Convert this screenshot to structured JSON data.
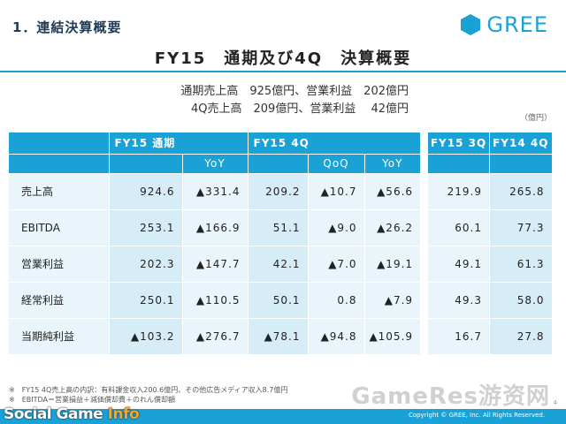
{
  "header": {
    "section_title": "1．連結決算概要",
    "logo_text": "GREE",
    "main_title": "FY15　通期及び4Q　決算概要"
  },
  "summary": {
    "line1": "通期売上高　925億円、営業利益　202億円",
    "line2": "4Q売上高　209億円、営業利益　 42億円"
  },
  "unit_label": "（億円）",
  "table": {
    "group_headers": {
      "fy15_full": "FY15 通期",
      "fy15_4q": "FY15 4Q",
      "fy15_3q": "FY15 3Q",
      "fy14_4q": "FY14 4Q"
    },
    "sub_headers": {
      "yoy": "YoY",
      "qoq": "QoQ"
    },
    "rows": [
      {
        "label": "売上高",
        "full": "924.6",
        "full_yoy": "▲331.4",
        "q4": "209.2",
        "q4_qoq": "▲10.7",
        "q4_yoy": "▲56.6",
        "q3": "219.9",
        "prev_q4": "265.8"
      },
      {
        "label": "EBITDA",
        "full": "253.1",
        "full_yoy": "▲166.9",
        "q4": "51.1",
        "q4_qoq": "▲9.0",
        "q4_yoy": "▲26.2",
        "q3": "60.1",
        "prev_q4": "77.3"
      },
      {
        "label": "営業利益",
        "full": "202.3",
        "full_yoy": "▲147.7",
        "q4": "42.1",
        "q4_qoq": "▲7.0",
        "q4_yoy": "▲19.1",
        "q3": "49.1",
        "prev_q4": "61.3"
      },
      {
        "label": "経常利益",
        "full": "250.1",
        "full_yoy": "▲110.5",
        "q4": "50.1",
        "q4_qoq": "0.8",
        "q4_yoy": "▲7.9",
        "q3": "49.3",
        "prev_q4": "58.0"
      },
      {
        "label": "当期純利益",
        "full": "▲103.2",
        "full_yoy": "▲276.7",
        "q4": "▲78.1",
        "q4_qoq": "▲94.8",
        "q4_yoy": "▲105.9",
        "q3": "16.7",
        "prev_q4": "27.8"
      }
    ]
  },
  "notes": {
    "note1": "※　FY15 4Q売上高の内訳：有料課金収入200.6億円、その他広告メディア収入8.7億円",
    "note2": "※　EBITDA＝営業損益＋減価償却費＋のれん償却額"
  },
  "footer": {
    "copyright": "Copyright © GREE, Inc. All Rights Reserved.",
    "page_number": "4",
    "social_prefix": "Social Game ",
    "social_suffix": "Info",
    "watermark": "GameRes游资网"
  },
  "colors": {
    "accent": "#1aa1d6",
    "cell": "#eaf5fb",
    "cell_shade": "#d6ecf7"
  }
}
